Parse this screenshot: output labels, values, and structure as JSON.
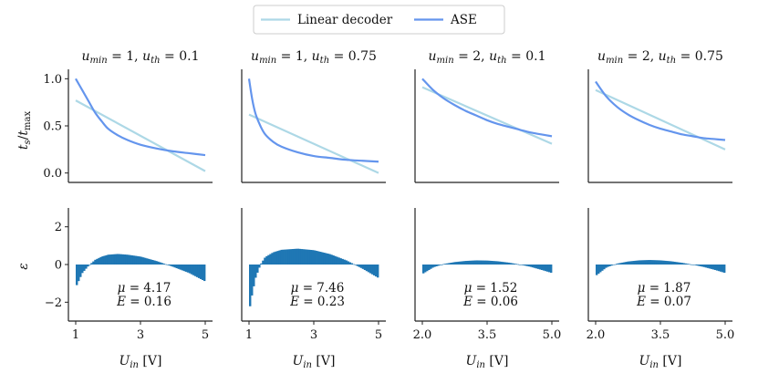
{
  "legend": {
    "items": [
      {
        "name": "Linear decoder",
        "color": "#add8e6"
      },
      {
        "name": "ASE",
        "color": "#6495ed"
      }
    ]
  },
  "chart_data": [
    {
      "type": "line",
      "title": "u_min = 1, u_th = 0.1",
      "title_parts": {
        "u1": "u",
        "s1": "min",
        "v1": " = 1, ",
        "u2": "u",
        "s2": "th",
        "v2": " = 0.1"
      },
      "xlim": [
        1,
        5
      ],
      "xticks": [
        1,
        3,
        5
      ],
      "xtick_labels": [
        "1",
        "3",
        "5"
      ],
      "top": {
        "ylabel": "t_s / t_max",
        "ylim": [
          -0.1,
          1.1
        ],
        "yticks": [
          0,
          0.5,
          1.0
        ],
        "ytick_labels": [
          "0.0",
          "0.5",
          "1.0"
        ],
        "series": [
          {
            "name": "Linear decoder",
            "x": [
              1,
              5
            ],
            "y": [
              0.77,
              0.02
            ]
          },
          {
            "name": "ASE",
            "x": [
              1,
              1.2,
              1.4,
              1.6,
              1.8,
              2.0,
              2.3,
              2.6,
              3.0,
              3.5,
              4.0,
              4.5,
              5.0
            ],
            "y": [
              1.0,
              0.88,
              0.76,
              0.64,
              0.55,
              0.47,
              0.4,
              0.35,
              0.3,
              0.26,
              0.23,
              0.21,
              0.19
            ]
          }
        ]
      },
      "bottom": {
        "ylabel": "ε",
        "ylim": [
          -3,
          3
        ],
        "yticks": [
          -2,
          0,
          2
        ],
        "ytick_labels": [
          "−2",
          "0",
          "2"
        ],
        "error": {
          "x": [
            1,
            1.2,
            1.4,
            1.6,
            1.8,
            2.0,
            2.3,
            2.6,
            3.0,
            3.5,
            4.0,
            4.5,
            5.0
          ],
          "y": [
            -1.2,
            -0.45,
            -0.05,
            0.25,
            0.42,
            0.52,
            0.56,
            0.52,
            0.42,
            0.18,
            -0.12,
            -0.45,
            -0.9
          ]
        },
        "stats": {
          "mu_symbol": "μ",
          "mu": "4.17",
          "e_symbol": "E",
          "e": "0.16"
        }
      },
      "xlabel": {
        "main": "U",
        "sub": "in",
        "unit": " [V]"
      }
    },
    {
      "type": "line",
      "title": "u_min = 1, u_th = 0.75",
      "title_parts": {
        "u1": "u",
        "s1": "min",
        "v1": " = 1, ",
        "u2": "u",
        "s2": "th",
        "v2": " = 0.75"
      },
      "xlim": [
        1,
        5
      ],
      "xticks": [
        1,
        3,
        5
      ],
      "xtick_labels": [
        "1",
        "3",
        "5"
      ],
      "top": {
        "ylim": [
          -0.1,
          1.1
        ],
        "yticks": [
          0,
          0.5,
          1.0
        ],
        "series": [
          {
            "name": "Linear decoder",
            "x": [
              1,
              5
            ],
            "y": [
              0.62,
              0.0
            ]
          },
          {
            "name": "ASE",
            "x": [
              1,
              1.1,
              1.2,
              1.35,
              1.5,
              1.75,
              2.0,
              2.5,
              3.0,
              3.5,
              4.0,
              4.5,
              5.0
            ],
            "y": [
              1.0,
              0.78,
              0.63,
              0.5,
              0.41,
              0.33,
              0.28,
              0.22,
              0.18,
              0.16,
              0.14,
              0.13,
              0.12
            ]
          }
        ]
      },
      "bottom": {
        "ylim": [
          -3,
          3
        ],
        "yticks": [
          -2,
          0,
          2
        ],
        "error": {
          "x": [
            1,
            1.1,
            1.2,
            1.35,
            1.5,
            1.75,
            2.0,
            2.5,
            3.0,
            3.5,
            4.0,
            4.5,
            5.0
          ],
          "y": [
            -2.5,
            -1.5,
            -0.7,
            0.0,
            0.4,
            0.65,
            0.78,
            0.84,
            0.76,
            0.55,
            0.22,
            -0.22,
            -0.72
          ]
        },
        "stats": {
          "mu_symbol": "μ",
          "mu": "7.46",
          "e_symbol": "E",
          "e": "0.23"
        }
      },
      "xlabel": {
        "main": "U",
        "sub": "in",
        "unit": " [V]"
      }
    },
    {
      "type": "line",
      "title": "u_min = 2, u_th = 0.1",
      "title_parts": {
        "u1": "u",
        "s1": "min",
        "v1": " = 2, ",
        "u2": "u",
        "s2": "th",
        "v2": " = 0.1"
      },
      "xlim": [
        2,
        5
      ],
      "xticks": [
        2,
        3.5,
        5
      ],
      "xtick_labels": [
        "2.0",
        "3.5",
        "5.0"
      ],
      "top": {
        "ylim": [
          -0.1,
          1.1
        ],
        "yticks": [
          0,
          0.5,
          1.0
        ],
        "series": [
          {
            "name": "Linear decoder",
            "x": [
              2,
              5
            ],
            "y": [
              0.91,
              0.31
            ]
          },
          {
            "name": "ASE",
            "x": [
              2,
              2.25,
              2.5,
              2.75,
              3.0,
              3.25,
              3.5,
              3.75,
              4.0,
              4.25,
              4.5,
              4.75,
              5.0
            ],
            "y": [
              1.0,
              0.88,
              0.79,
              0.72,
              0.66,
              0.61,
              0.56,
              0.52,
              0.49,
              0.46,
              0.43,
              0.41,
              0.39
            ]
          }
        ]
      },
      "bottom": {
        "ylim": [
          -3,
          3
        ],
        "yticks": [
          -2,
          0,
          2
        ],
        "error": {
          "x": [
            2,
            2.25,
            2.5,
            2.75,
            3.0,
            3.25,
            3.5,
            3.75,
            4.0,
            4.25,
            4.5,
            4.75,
            5.0
          ],
          "y": [
            -0.5,
            -0.15,
            0.03,
            0.13,
            0.19,
            0.22,
            0.21,
            0.17,
            0.1,
            0.0,
            -0.12,
            -0.28,
            -0.45
          ]
        },
        "stats": {
          "mu_symbol": "μ",
          "mu": "1.52",
          "e_symbol": "E",
          "e": "0.06"
        }
      },
      "xlabel": {
        "main": "U",
        "sub": "in",
        "unit": " [V]"
      }
    },
    {
      "type": "line",
      "title": "u_min = 2, u_th = 0.75",
      "title_parts": {
        "u1": "u",
        "s1": "min",
        "v1": " = 2, ",
        "u2": "u",
        "s2": "th",
        "v2": " = 0.75"
      },
      "xlim": [
        2,
        5
      ],
      "xticks": [
        2,
        3.5,
        5
      ],
      "xtick_labels": [
        "2.0",
        "3.5",
        "5.0"
      ],
      "top": {
        "ylim": [
          -0.1,
          1.1
        ],
        "yticks": [
          0,
          0.5,
          1.0
        ],
        "series": [
          {
            "name": "Linear decoder",
            "x": [
              2,
              5
            ],
            "y": [
              0.88,
              0.25
            ]
          },
          {
            "name": "ASE",
            "x": [
              2,
              2.25,
              2.5,
              2.75,
              3.0,
              3.25,
              3.5,
              3.75,
              4.0,
              4.25,
              4.5,
              4.75,
              5.0
            ],
            "y": [
              0.97,
              0.81,
              0.7,
              0.62,
              0.56,
              0.51,
              0.47,
              0.44,
              0.41,
              0.39,
              0.37,
              0.36,
              0.35
            ]
          }
        ]
      },
      "bottom": {
        "ylim": [
          -3,
          3
        ],
        "yticks": [
          -2,
          0,
          2
        ],
        "error": {
          "x": [
            2,
            2.25,
            2.5,
            2.75,
            3.0,
            3.25,
            3.5,
            3.75,
            4.0,
            4.25,
            4.5,
            4.75,
            5.0
          ],
          "y": [
            -0.6,
            -0.15,
            0.05,
            0.16,
            0.22,
            0.24,
            0.22,
            0.17,
            0.09,
            -0.01,
            -0.13,
            -0.28,
            -0.45
          ]
        },
        "stats": {
          "mu_symbol": "μ",
          "mu": "1.87",
          "e_symbol": "E",
          "e": "0.07"
        }
      },
      "xlabel": {
        "main": "U",
        "sub": "in",
        "unit": " [V]"
      }
    }
  ]
}
